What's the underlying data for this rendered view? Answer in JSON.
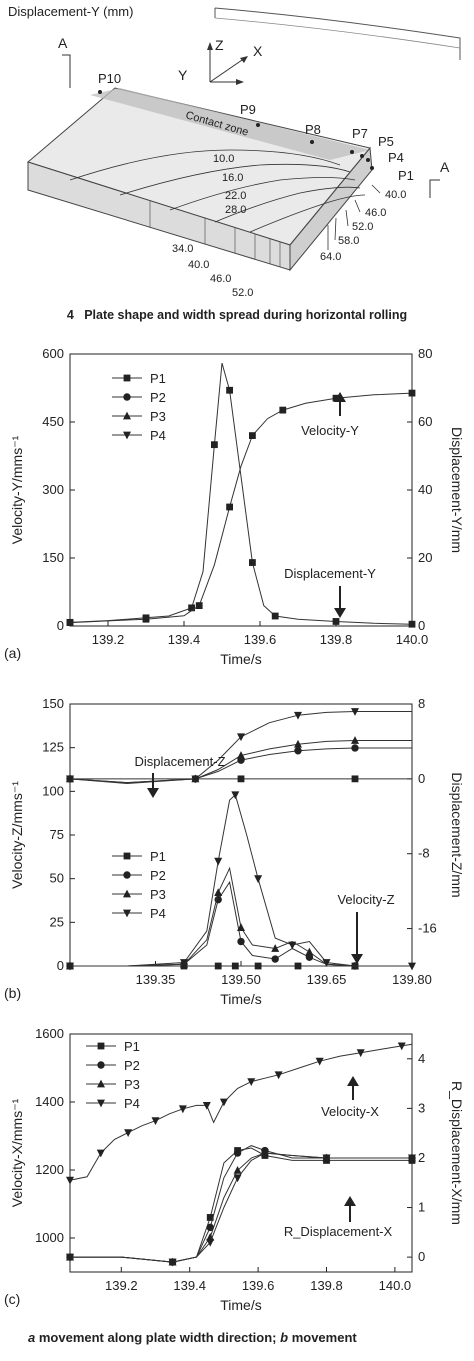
{
  "figure_top": {
    "title_label": "Displacement-Y (mm)",
    "section_label_left": "A",
    "section_label_right": "A",
    "axis_z": "Z",
    "axis_x": "X",
    "axis_y": "Y",
    "zone_label": "Contact zone",
    "points": [
      "P10",
      "P9",
      "P8",
      "P7",
      "P5",
      "P4",
      "P1"
    ],
    "contour_labels_top": [
      "10.0",
      "16.0",
      "22.0",
      "28.0"
    ],
    "contour_labels_bottom": [
      "34.0",
      "40.0",
      "46.0",
      "52.0"
    ],
    "contour_labels_right": [
      "40.0",
      "46.0",
      "52.0",
      "58.0",
      "64.0"
    ]
  },
  "caption": {
    "number": "4",
    "text": "Plate shape and width spread during horizontal rolling"
  },
  "footer": {
    "a_tag": "a",
    "a_text": "movement along plate width direction;",
    "b_tag": "b",
    "b_text": "movement"
  },
  "chart_data": [
    {
      "id": "a",
      "type": "line",
      "panel_label": "(a)",
      "xlabel": "Time/s",
      "ylabel_left": "Velocity-Y/mms⁻¹",
      "ylabel_right": "Displacement-Y/mm",
      "xlim": [
        139.1,
        140.0
      ],
      "ylim_left": [
        0,
        600
      ],
      "ylim_right": [
        0,
        80
      ],
      "xticks": [
        "139.2",
        "139.4",
        "139.6",
        "139.8",
        "140.0"
      ],
      "xtick_values": [
        139.2,
        139.4,
        139.6,
        139.8,
        140.0
      ],
      "yticks_left": [
        "0",
        "150",
        "300",
        "450",
        "600"
      ],
      "yticks_right": [
        "0",
        "20",
        "40",
        "60",
        "80"
      ],
      "legend": [
        "P1",
        "P2",
        "P3",
        "P4"
      ],
      "annotations": [
        "Velocity-Y",
        "Displacement-Y"
      ],
      "series": [
        {
          "name": "P1",
          "axis": "left",
          "x": [
            139.1,
            139.2,
            139.3,
            139.36,
            139.42,
            139.45,
            139.48,
            139.5,
            139.52,
            139.55,
            139.58,
            139.61,
            139.64,
            139.7,
            139.8,
            139.9,
            140.0
          ],
          "y": [
            8,
            12,
            18,
            22,
            40,
            120,
            400,
            580,
            520,
            330,
            140,
            45,
            22,
            15,
            10,
            6,
            4
          ]
        },
        {
          "name": "P1-disp",
          "axis": "right",
          "x": [
            139.1,
            139.2,
            139.3,
            139.4,
            139.44,
            139.48,
            139.52,
            139.55,
            139.58,
            139.62,
            139.66,
            139.72,
            139.8,
            139.9,
            140.0
          ],
          "y": [
            1,
            1.5,
            2,
            3,
            6,
            18,
            35,
            47,
            56,
            61,
            63.5,
            65.5,
            67,
            68,
            68.5
          ]
        }
      ]
    },
    {
      "id": "b",
      "type": "line",
      "panel_label": "(b)",
      "xlabel": "Time/s",
      "ylabel_left": "Velocity-Z/mms⁻¹",
      "ylabel_right": "Displacement-Z/mm",
      "xlim": [
        139.2,
        139.8
      ],
      "ylim_left": [
        0,
        150
      ],
      "ylim_right": [
        -20,
        8
      ],
      "xticks": [
        "139.35",
        "139.50",
        "139.65",
        "139.80"
      ],
      "xtick_values": [
        139.35,
        139.5,
        139.65,
        139.8
      ],
      "yticks_left": [
        "0",
        "25",
        "50",
        "75",
        "100",
        "125",
        "150"
      ],
      "yticks_right": [
        "-16",
        "-8",
        "0",
        "8"
      ],
      "ytick_values_right": [
        -16,
        -8,
        0,
        8
      ],
      "legend": [
        "P1",
        "P2",
        "P3",
        "P4"
      ],
      "annotations": [
        "Displacement-Z",
        "Velocity-Z"
      ],
      "series": [
        {
          "name": "P1",
          "axis": "left",
          "x": [
            139.2,
            139.3,
            139.4,
            139.44,
            139.46,
            139.47,
            139.49,
            139.51,
            139.53,
            139.56,
            139.6,
            139.65,
            139.7,
            139.8
          ],
          "y": [
            0,
            0,
            0,
            0,
            0,
            0,
            0,
            0,
            0,
            0,
            0,
            0,
            0,
            0
          ]
        },
        {
          "name": "P2",
          "axis": "left",
          "x": [
            139.2,
            139.3,
            139.4,
            139.44,
            139.46,
            139.48,
            139.5,
            139.52,
            139.56,
            139.59,
            139.62,
            139.65,
            139.7,
            139.8
          ],
          "y": [
            0,
            0,
            1,
            12,
            38,
            48,
            14,
            6,
            4,
            10,
            5,
            1,
            0,
            0
          ]
        },
        {
          "name": "P3",
          "axis": "left",
          "x": [
            139.2,
            139.3,
            139.4,
            139.44,
            139.46,
            139.48,
            139.5,
            139.52,
            139.56,
            139.59,
            139.62,
            139.65,
            139.7,
            139.8
          ],
          "y": [
            0,
            0,
            1,
            15,
            42,
            56,
            22,
            12,
            10,
            14,
            8,
            1,
            0,
            0
          ]
        },
        {
          "name": "P4",
          "axis": "left",
          "x": [
            139.2,
            139.3,
            139.4,
            139.44,
            139.46,
            139.48,
            139.49,
            139.51,
            139.53,
            139.56,
            139.59,
            139.62,
            139.65,
            139.7,
            139.8
          ],
          "y": [
            0,
            0,
            2,
            20,
            60,
            95,
            98,
            75,
            50,
            16,
            12,
            14,
            2,
            0,
            0
          ]
        },
        {
          "name": "P1-disp",
          "axis": "right",
          "x": [
            139.2,
            139.4,
            139.5,
            139.6,
            139.7,
            139.8
          ],
          "y": [
            0,
            0,
            0,
            0,
            0,
            0
          ]
        },
        {
          "name": "P2-disp",
          "axis": "right",
          "x": [
            139.2,
            139.3,
            139.42,
            139.46,
            139.5,
            139.55,
            139.6,
            139.65,
            139.7,
            139.8
          ],
          "y": [
            0,
            -0.4,
            0,
            0.8,
            2,
            2.6,
            3,
            3.2,
            3.3,
            3.3
          ]
        },
        {
          "name": "P3-disp",
          "axis": "right",
          "x": [
            139.2,
            139.3,
            139.42,
            139.46,
            139.5,
            139.55,
            139.6,
            139.65,
            139.7,
            139.8
          ],
          "y": [
            0,
            -0.4,
            0,
            1,
            2.5,
            3.2,
            3.7,
            4,
            4.1,
            4.1
          ]
        },
        {
          "name": "P4-disp",
          "axis": "right",
          "x": [
            139.2,
            139.3,
            139.42,
            139.46,
            139.5,
            139.55,
            139.6,
            139.65,
            139.7,
            139.8
          ],
          "y": [
            0,
            -0.5,
            0,
            2,
            4.5,
            6,
            6.8,
            7.1,
            7.2,
            7.2
          ]
        }
      ]
    },
    {
      "id": "c",
      "type": "line",
      "panel_label": "(c)",
      "xlabel": "Time/s",
      "ylabel_left": "Velocity-X/mms⁻¹",
      "ylabel_right": "R_Displacement-X/mm",
      "xlim": [
        139.05,
        140.05
      ],
      "ylim_left": [
        900,
        1600
      ],
      "ylim_right": [
        -0.3,
        4.5
      ],
      "xticks": [
        "139.2",
        "139.4",
        "139.6",
        "139.8",
        "140.0"
      ],
      "xtick_values": [
        139.2,
        139.4,
        139.6,
        139.8,
        140.0
      ],
      "yticks_left": [
        "1000",
        "1200",
        "1400",
        "1600"
      ],
      "ytick_values_left": [
        1000,
        1200,
        1400,
        1600
      ],
      "yticks_right": [
        "0",
        "1",
        "2",
        "3",
        "4"
      ],
      "legend": [
        "P1",
        "P2",
        "P3",
        "P4"
      ],
      "annotations": [
        "Velocity-X",
        "R_Displacement-X"
      ],
      "series": [
        {
          "name": "Velocity-X",
          "axis": "left",
          "x": [
            139.05,
            139.1,
            139.14,
            139.18,
            139.22,
            139.26,
            139.3,
            139.34,
            139.38,
            139.42,
            139.45,
            139.47,
            139.5,
            139.54,
            139.58,
            139.62,
            139.66,
            139.72,
            139.78,
            139.84,
            139.9,
            139.96,
            140.02,
            140.05
          ],
          "y": [
            1170,
            1180,
            1250,
            1290,
            1310,
            1330,
            1345,
            1365,
            1380,
            1390,
            1390,
            1340,
            1400,
            1440,
            1460,
            1470,
            1480,
            1500,
            1520,
            1535,
            1545,
            1555,
            1565,
            1570
          ]
        },
        {
          "name": "P1",
          "axis": "right",
          "x": [
            139.05,
            139.2,
            139.35,
            139.42,
            139.46,
            139.5,
            139.54,
            139.58,
            139.62,
            139.7,
            139.8,
            139.9,
            140.05
          ],
          "y": [
            0,
            0,
            -0.1,
            0,
            0.8,
            1.9,
            2.15,
            2.2,
            2.05,
            1.95,
            1.95,
            1.95,
            1.95
          ]
        },
        {
          "name": "P2",
          "axis": "right",
          "x": [
            139.05,
            139.2,
            139.35,
            139.42,
            139.46,
            139.5,
            139.54,
            139.58,
            139.62,
            139.7,
            139.8,
            139.9,
            140.05
          ],
          "y": [
            0,
            0,
            -0.1,
            0,
            0.6,
            1.6,
            2.1,
            2.25,
            2.15,
            2.0,
            2.0,
            2.0,
            2.0
          ]
        },
        {
          "name": "P3",
          "axis": "right",
          "x": [
            139.05,
            139.2,
            139.35,
            139.42,
            139.46,
            139.5,
            139.54,
            139.58,
            139.62,
            139.7,
            139.8,
            139.9,
            140.05
          ],
          "y": [
            0,
            0,
            -0.1,
            0,
            0.4,
            1.2,
            1.75,
            2.0,
            2.1,
            2.05,
            2.0,
            2.0,
            2.0
          ]
        },
        {
          "name": "P4",
          "axis": "right",
          "x": [
            139.05,
            139.2,
            139.35,
            139.42,
            139.46,
            139.5,
            139.54,
            139.58,
            139.62,
            139.7,
            139.8,
            139.9,
            140.05
          ],
          "y": [
            0,
            0,
            -0.1,
            0,
            0.3,
            1.0,
            1.6,
            1.95,
            2.1,
            2.05,
            2.0,
            2.0,
            2.0
          ]
        }
      ]
    }
  ]
}
